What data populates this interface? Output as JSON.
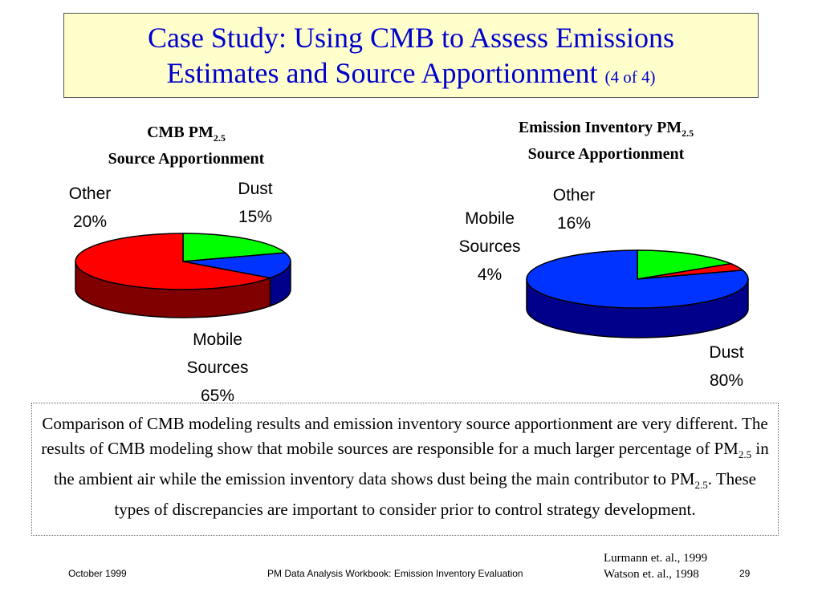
{
  "slide": {
    "title_main": "Case Study: Using CMB to Assess Emissions",
    "title_line2": "Estimates and Source Apportionment",
    "title_page": "(4 of 4)"
  },
  "chart_data": [
    {
      "type": "pie",
      "title_prefix": "CMB PM",
      "title_sub": "2.5",
      "title_line2": "Source Apportionment",
      "slices": [
        {
          "name": "Dust",
          "value": 15,
          "label": "15%",
          "color": "#0033ff",
          "side_color": "#00008b"
        },
        {
          "name": "Mobile Sources",
          "name_line1": "Mobile",
          "name_line2": "Sources",
          "value": 65,
          "label": "65%",
          "color": "#ff0000",
          "side_color": "#800000"
        },
        {
          "name": "Other",
          "value": 20,
          "label": "20%",
          "color": "#00ff00",
          "side_color": "#008000"
        }
      ]
    },
    {
      "type": "pie",
      "title_prefix": "Emission Inventory PM",
      "title_sub": "2.5",
      "title_line2": "Source Apportionment",
      "slices": [
        {
          "name": "Dust",
          "value": 80,
          "label": "80%",
          "color": "#0033ff",
          "side_color": "#00008b"
        },
        {
          "name": "Mobile Sources",
          "name_line1": "Mobile",
          "name_line2": "Sources",
          "value": 4,
          "label": "4%",
          "color": "#ff0000",
          "side_color": "#800000"
        },
        {
          "name": "Other",
          "value": 16,
          "label": "16%",
          "color": "#00ff00",
          "side_color": "#008000"
        }
      ]
    }
  ],
  "description": {
    "part1": "Comparison of CMB modeling results and emission inventory source apportionment are very different.  The results of CMB modeling show that mobile sources are responsible for a much larger percentage of PM",
    "sub1": "2.5",
    "part2": " in the ambient air while the emission inventory data shows dust being the main contributor to PM",
    "sub2": "2.5",
    "part3": ".  These types of discrepancies are important to consider prior to control strategy development."
  },
  "footer": {
    "date": "October 1999",
    "workbook": "PM Data Analysis Workbook: Emission Inventory Evaluation",
    "ref1": "Lurmann et. al., 1999",
    "ref2": "Watson et. al., 1998",
    "page": "29"
  }
}
